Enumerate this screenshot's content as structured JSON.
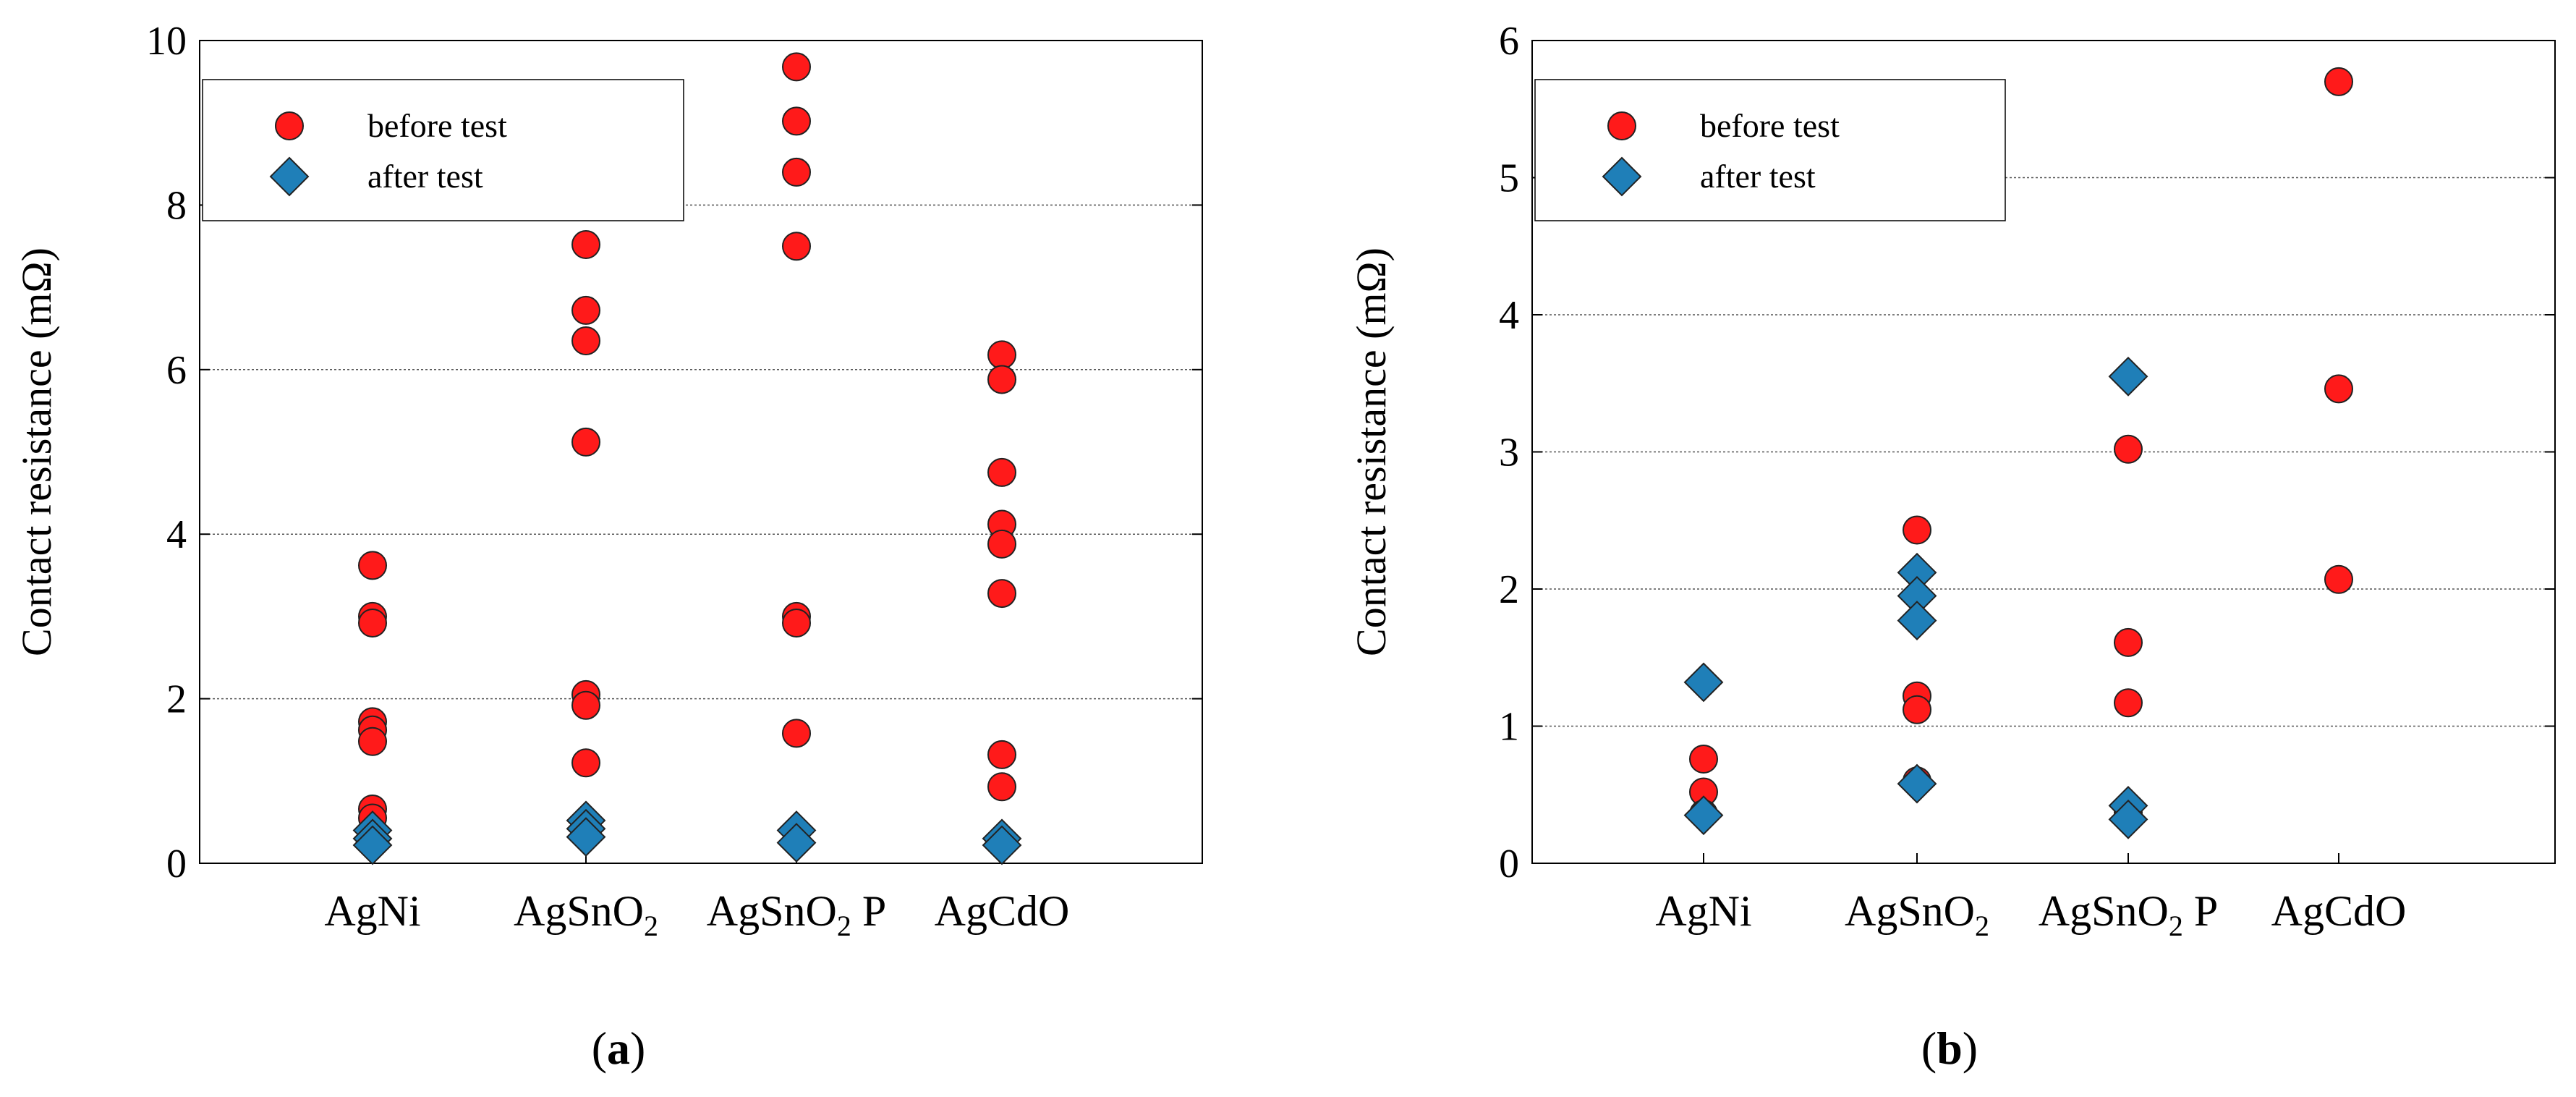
{
  "figure": {
    "marker_colors": {
      "before": "#ff1a1a",
      "after": "#1f7fb8"
    },
    "gridline_color": "#555555"
  },
  "chart_data": [
    {
      "type": "scatter",
      "panel_label": "a",
      "ylabel": "Contact resistance (mΩ)",
      "ylim": [
        0,
        10
      ],
      "yticks": [
        0,
        2,
        4,
        6,
        8,
        10
      ],
      "ytick_labels": [
        "0",
        "2",
        "4",
        "6",
        "8",
        "10"
      ],
      "grid": true,
      "legend": {
        "placement": "top-left",
        "entries": [
          "before test",
          "after test"
        ]
      },
      "categories": [
        {
          "base": "AgNi",
          "sub": "",
          "suffix": ""
        },
        {
          "base": "AgSnO",
          "sub": "2",
          "suffix": ""
        },
        {
          "base": "AgSnO",
          "sub": "2",
          "suffix": " P"
        },
        {
          "base": "AgCdO",
          "sub": "",
          "suffix": ""
        }
      ],
      "series": [
        {
          "name": "before test",
          "marker": "circle",
          "points": [
            [
              0,
              3.62
            ],
            [
              0,
              3.0
            ],
            [
              0,
              2.92
            ],
            [
              0,
              1.72
            ],
            [
              0,
              1.62
            ],
            [
              0,
              1.48
            ],
            [
              0,
              0.66
            ],
            [
              0,
              0.55
            ],
            [
              1,
              7.52
            ],
            [
              1,
              6.72
            ],
            [
              1,
              6.35
            ],
            [
              1,
              5.12
            ],
            [
              1,
              2.05
            ],
            [
              1,
              1.92
            ],
            [
              1,
              1.22
            ],
            [
              2,
              9.68
            ],
            [
              2,
              9.02
            ],
            [
              2,
              8.4
            ],
            [
              2,
              7.5
            ],
            [
              2,
              3.0
            ],
            [
              2,
              2.92
            ],
            [
              2,
              1.58
            ],
            [
              3,
              6.18
            ],
            [
              3,
              5.88
            ],
            [
              3,
              4.75
            ],
            [
              3,
              4.12
            ],
            [
              3,
              3.88
            ],
            [
              3,
              3.28
            ],
            [
              3,
              1.32
            ],
            [
              3,
              0.93
            ]
          ]
        },
        {
          "name": "after test",
          "marker": "diamond",
          "points": [
            [
              0,
              0.4
            ],
            [
              0,
              0.3
            ],
            [
              0,
              0.22
            ],
            [
              1,
              0.52
            ],
            [
              1,
              0.42
            ],
            [
              1,
              0.32
            ],
            [
              2,
              0.4
            ],
            [
              2,
              0.25
            ],
            [
              3,
              0.3
            ],
            [
              3,
              0.22
            ]
          ]
        }
      ]
    },
    {
      "type": "scatter",
      "panel_label": "b",
      "ylabel": "Contact resistance (mΩ)",
      "ylim": [
        0,
        6
      ],
      "yticks": [
        0,
        1,
        2,
        3,
        4,
        5,
        6
      ],
      "ytick_labels": [
        "0",
        "1",
        "2",
        "3",
        "4",
        "5",
        "6"
      ],
      "grid": true,
      "legend": {
        "placement": "top-left",
        "entries": [
          "before test",
          "after test"
        ]
      },
      "categories": [
        {
          "base": "AgNi",
          "sub": "",
          "suffix": ""
        },
        {
          "base": "AgSnO",
          "sub": "2",
          "suffix": ""
        },
        {
          "base": "AgSnO",
          "sub": "2",
          "suffix": " P"
        },
        {
          "base": "AgCdO",
          "sub": "",
          "suffix": ""
        }
      ],
      "series": [
        {
          "name": "before test",
          "marker": "circle",
          "points": [
            [
              0,
              0.76
            ],
            [
              0,
              0.52
            ],
            [
              0,
              0.36
            ],
            [
              1,
              2.43
            ],
            [
              1,
              1.22
            ],
            [
              1,
              1.12
            ],
            [
              1,
              0.6
            ],
            [
              2,
              3.02
            ],
            [
              2,
              1.61
            ],
            [
              2,
              1.17
            ],
            [
              2,
              0.37
            ],
            [
              3,
              5.7
            ],
            [
              3,
              3.46
            ],
            [
              3,
              2.07
            ]
          ]
        },
        {
          "name": "after test",
          "marker": "diamond",
          "points": [
            [
              0,
              1.32
            ],
            [
              0,
              0.35
            ],
            [
              1,
              2.12
            ],
            [
              1,
              1.95
            ],
            [
              1,
              1.77
            ],
            [
              1,
              0.58
            ],
            [
              2,
              3.55
            ],
            [
              2,
              0.42
            ],
            [
              2,
              0.32
            ]
          ]
        }
      ]
    }
  ]
}
